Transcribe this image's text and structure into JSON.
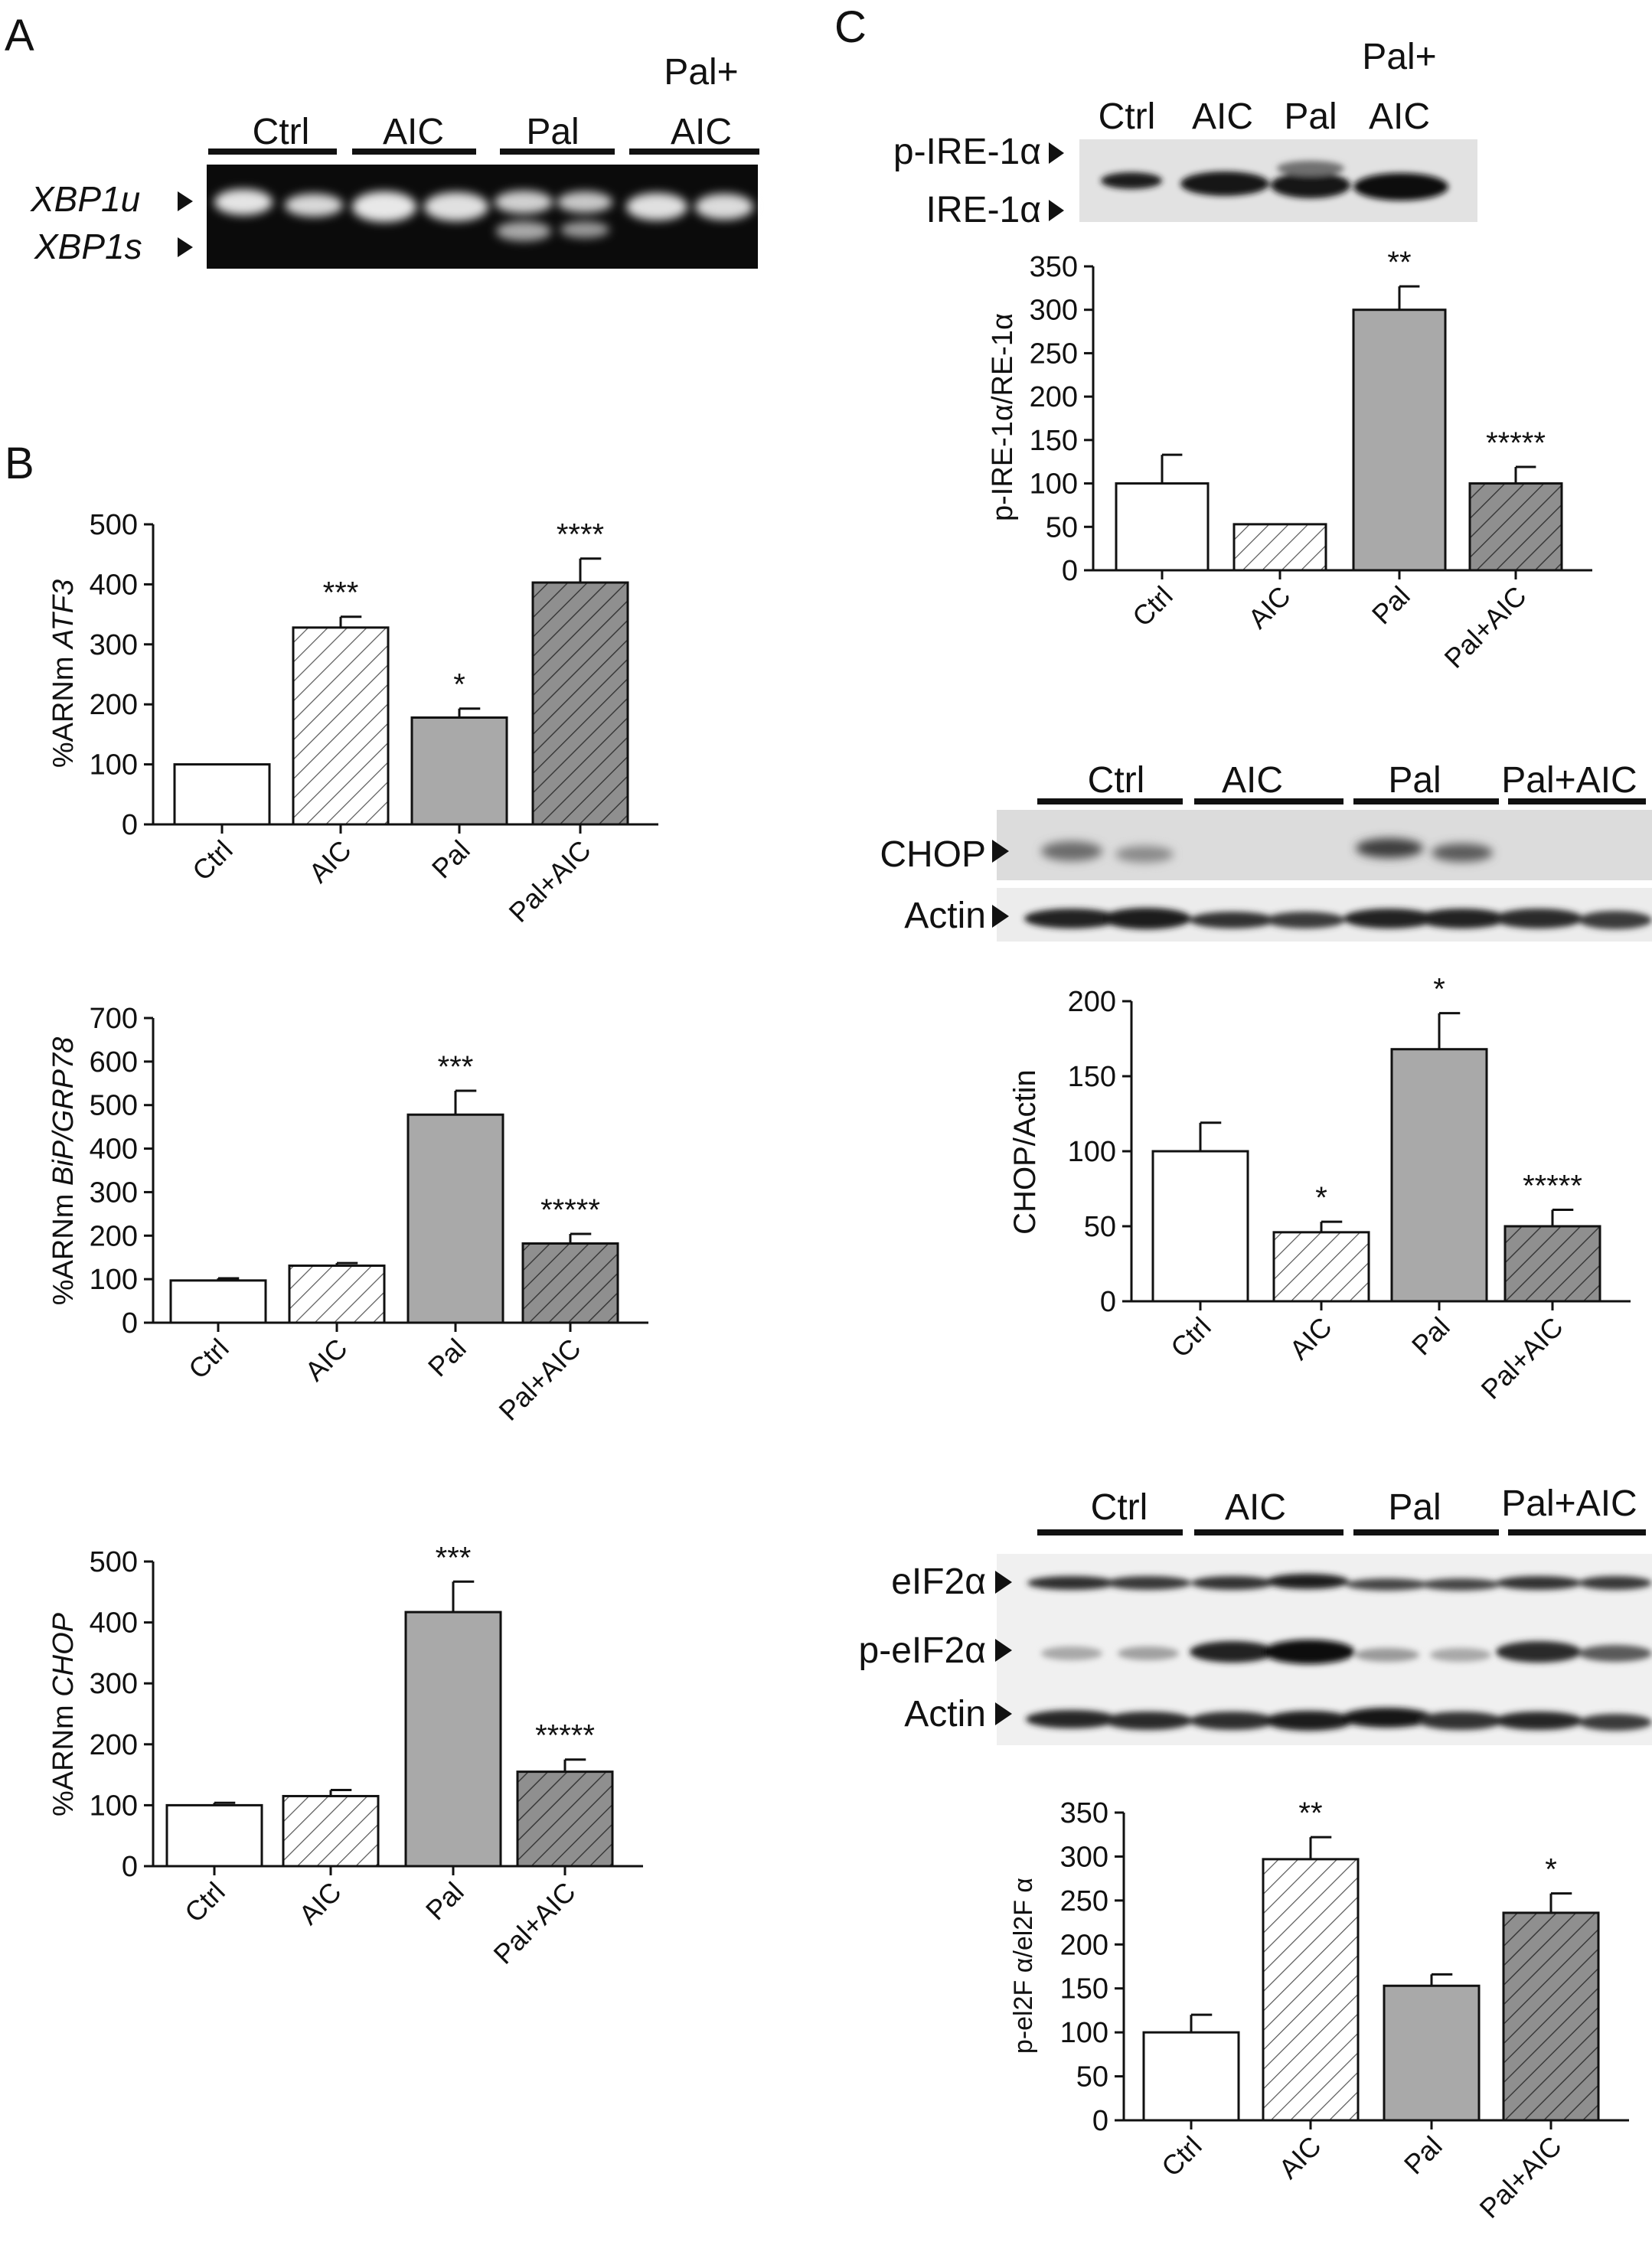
{
  "panels": {
    "A": "A",
    "B": "B",
    "C": "C"
  },
  "gel_A": {
    "groups": [
      "Ctrl",
      "AIC",
      "Pal",
      "Pal+\nAIC"
    ],
    "group_labels": [
      "Ctrl",
      "AIC",
      "Pal"
    ],
    "pal_aic_top": "Pal+",
    "pal_aic_bottom": "AIC",
    "band_upper": "XBP1u",
    "band_lower": "XBP1s"
  },
  "blot_ire": {
    "lanes": [
      "Ctrl",
      "AIC",
      "Pal"
    ],
    "pal_aic_top": "Pal+",
    "pal_aic_bottom": "AIC",
    "band_upper": "p-IRE-1α",
    "band_lower": "IRE-1α"
  },
  "blot_chop": {
    "groups": [
      "Ctrl",
      "AIC",
      "Pal",
      "Pal+AIC"
    ],
    "bands": [
      "CHOP",
      "Actin"
    ]
  },
  "blot_eif": {
    "groups": [
      "Ctrl",
      "AIC",
      "Pal",
      "Pal+AIC"
    ],
    "bands": [
      "eIF2α",
      "p-eIF2α",
      "Actin"
    ]
  },
  "chart_data": [
    {
      "id": "atf3",
      "type": "bar",
      "categories": [
        "Ctrl",
        "AIC",
        "Pal",
        "Pal+AIC"
      ],
      "values": [
        100,
        328,
        178,
        403
      ],
      "errors": [
        0,
        18,
        15,
        40
      ],
      "stars": [
        "",
        "***",
        "*",
        "****"
      ],
      "ylabel": "%ARNm ATF3",
      "ylabel_plain": "%ARNm ",
      "ylabel_italic": "ATF3",
      "ylim": [
        0,
        500
      ],
      "yticks": [
        "0",
        "100",
        "200",
        "300",
        "400",
        "500"
      ]
    },
    {
      "id": "bip",
      "type": "bar",
      "categories": [
        "Ctrl",
        "AIC",
        "Pal",
        "Pal+AIC"
      ],
      "values": [
        97,
        131,
        478,
        182
      ],
      "errors": [
        5,
        6,
        55,
        22
      ],
      "stars": [
        "",
        "",
        "***",
        "*****"
      ],
      "ylabel": "%ARNm BiP/GRP78",
      "ylabel_plain": "%ARNm ",
      "ylabel_italic": "BiP/GRP78",
      "ylim": [
        0,
        700
      ],
      "yticks": [
        "0",
        "100",
        "200",
        "300",
        "400",
        "500",
        "600",
        "700"
      ]
    },
    {
      "id": "chopm",
      "type": "bar",
      "categories": [
        "Ctrl",
        "AIC",
        "Pal",
        "Pal+AIC"
      ],
      "values": [
        100,
        115,
        417,
        155
      ],
      "errors": [
        4,
        10,
        50,
        20
      ],
      "stars": [
        "",
        "",
        "***",
        "*****"
      ],
      "ylabel": "%ARNm CHOP",
      "ylabel_plain": "%ARNm ",
      "ylabel_italic": "CHOP",
      "ylim": [
        0,
        500
      ],
      "yticks": [
        "0",
        "100",
        "200",
        "300",
        "400",
        "500"
      ]
    },
    {
      "id": "ire",
      "type": "bar",
      "categories": [
        "Ctrl",
        "AIC",
        "Pal",
        "Pal+AIC"
      ],
      "values": [
        100,
        53,
        300,
        100
      ],
      "errors": [
        33,
        0,
        27,
        19
      ],
      "stars": [
        "",
        "",
        "**",
        "*****"
      ],
      "ylabel": "p-IRE-1α/RE-1α",
      "ylim": [
        0,
        350
      ],
      "yticks": [
        "0",
        "50",
        "100",
        "150",
        "200",
        "250",
        "300",
        "350"
      ]
    },
    {
      "id": "chopp",
      "type": "bar",
      "categories": [
        "Ctrl",
        "AIC",
        "Pal",
        "Pal+AIC"
      ],
      "values": [
        100,
        46,
        168,
        50
      ],
      "errors": [
        19,
        7,
        24,
        11
      ],
      "stars": [
        "",
        "*",
        "*",
        "*****"
      ],
      "ylabel": "CHOP/Actin",
      "ylim": [
        0,
        200
      ],
      "yticks": [
        "0",
        "50",
        "100",
        "150",
        "200"
      ]
    },
    {
      "id": "eif",
      "type": "bar",
      "categories": [
        "Ctrl",
        "AIC",
        "Pal",
        "Pal+AIC"
      ],
      "values": [
        100,
        297,
        153,
        236
      ],
      "errors": [
        20,
        25,
        13,
        22
      ],
      "stars": [
        "",
        "**",
        "",
        "*"
      ],
      "ylabel": "p-el2F α/el2F α",
      "ylim": [
        0,
        350
      ],
      "yticks": [
        "0",
        "50",
        "100",
        "150",
        "200",
        "250",
        "300",
        "350"
      ]
    }
  ]
}
